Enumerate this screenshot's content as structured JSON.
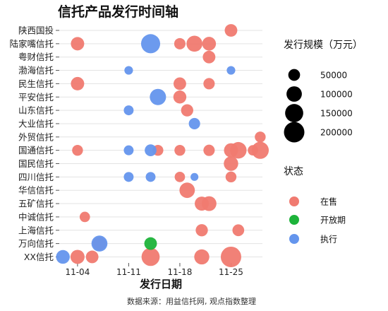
{
  "chart_data": {
    "type": "scatter",
    "title": "信托产品发行时间轴",
    "xlabel": "发行日期",
    "ylabel": "",
    "caption": "数据来源：用益信托网, 观点指数整理",
    "x_ticks": [
      "11-04",
      "11-11",
      "11-18",
      "11-25"
    ],
    "x_tick_values": [
      4,
      11,
      18,
      25
    ],
    "xlim": [
      1.5,
      29.3
    ],
    "categories": [
      "陕西国投",
      "陆家嘴信托",
      "粤财信托",
      "渤海信托",
      "民生信托",
      "平安信托",
      "山东信托",
      "大业信托",
      "外贸信托",
      "国通信托",
      "国民信托",
      "四川信托",
      "华信信托",
      "五矿信托",
      "中诚信托",
      "上海信托",
      "万向信托",
      "XX信托"
    ],
    "size_legend": {
      "title": "发行规模（万元）",
      "values": [
        50000,
        100000,
        150000,
        200000
      ],
      "labels": [
        "50000",
        "100000",
        "150000",
        "200000"
      ]
    },
    "status_legend": {
      "title": "状态",
      "items": [
        {
          "name": "在售",
          "color": "#F07A70"
        },
        {
          "name": "开放期",
          "color": "#1DB33A"
        },
        {
          "name": "执行",
          "color": "#6495ED"
        }
      ]
    },
    "series": [
      {
        "name": "在售",
        "color": "#F07A70",
        "points": [
          {
            "company": "陕西国投",
            "x": 25,
            "size": 60000
          },
          {
            "company": "陆家嘴信托",
            "x": 4,
            "size": 70000
          },
          {
            "company": "陆家嘴信托",
            "x": 18,
            "size": 45000
          },
          {
            "company": "陆家嘴信托",
            "x": 20,
            "size": 110000
          },
          {
            "company": "陆家嘴信托",
            "x": 22,
            "size": 75000
          },
          {
            "company": "粤财信托",
            "x": 22,
            "size": 60000
          },
          {
            "company": "民生信托",
            "x": 4,
            "size": 70000
          },
          {
            "company": "民生信托",
            "x": 18,
            "size": 60000
          },
          {
            "company": "民生信托",
            "x": 22,
            "size": 45000
          },
          {
            "company": "平安信托",
            "x": 18,
            "size": 65000
          },
          {
            "company": "山东信托",
            "x": 19,
            "size": 55000
          },
          {
            "company": "外贸信托",
            "x": 29,
            "size": 40000
          },
          {
            "company": "国通信托",
            "x": 4,
            "size": 40000
          },
          {
            "company": "国通信托",
            "x": 15,
            "size": 40000
          },
          {
            "company": "国通信托",
            "x": 18,
            "size": 40000
          },
          {
            "company": "国通信托",
            "x": 22,
            "size": 45000
          },
          {
            "company": "国通信托",
            "x": 25,
            "size": 80000
          },
          {
            "company": "国通信托",
            "x": 26,
            "size": 120000
          },
          {
            "company": "国通信托",
            "x": 28,
            "size": 35000
          },
          {
            "company": "国通信托",
            "x": 29,
            "size": 130000
          },
          {
            "company": "国民信托",
            "x": 25,
            "size": 85000
          },
          {
            "company": "四川信托",
            "x": 18,
            "size": 35000
          },
          {
            "company": "四川信托",
            "x": 25,
            "size": 40000
          },
          {
            "company": "华信信托",
            "x": 19,
            "size": 100000
          },
          {
            "company": "五矿信托",
            "x": 21,
            "size": 80000
          },
          {
            "company": "五矿信托",
            "x": 22,
            "size": 90000
          },
          {
            "company": "中诚信托",
            "x": 5,
            "size": 35000
          },
          {
            "company": "上海信托",
            "x": 21,
            "size": 55000
          },
          {
            "company": "上海信托",
            "x": 26,
            "size": 50000
          },
          {
            "company": "万向信托",
            "x": 7,
            "size": 70000
          },
          {
            "company": "XX信托",
            "x": 4,
            "size": 80000
          },
          {
            "company": "XX信托",
            "x": 6,
            "size": 60000
          },
          {
            "company": "XX信托",
            "x": 14,
            "size": 150000
          },
          {
            "company": "XX信托",
            "x": 21,
            "size": 95000
          },
          {
            "company": "XX信托",
            "x": 25,
            "size": 200000
          }
        ]
      },
      {
        "name": "开放期",
        "color": "#1DB33A",
        "points": [
          {
            "company": "万向信托",
            "x": 14,
            "size": 60000
          }
        ]
      },
      {
        "name": "执行",
        "color": "#6495ED",
        "points": [
          {
            "company": "陆家嘴信托",
            "x": 14,
            "size": 170000
          },
          {
            "company": "渤海信托",
            "x": 11,
            "size": 20000
          },
          {
            "company": "渤海信托",
            "x": 25,
            "size": 20000
          },
          {
            "company": "平安信托",
            "x": 15,
            "size": 115000
          },
          {
            "company": "山东信托",
            "x": 11,
            "size": 30000
          },
          {
            "company": "大业信托",
            "x": 20,
            "size": 45000
          },
          {
            "company": "国通信托",
            "x": 11,
            "size": 30000
          },
          {
            "company": "国通信托",
            "x": 14,
            "size": 50000
          },
          {
            "company": "四川信托",
            "x": 11,
            "size": 30000
          },
          {
            "company": "四川信托",
            "x": 14,
            "size": 30000
          },
          {
            "company": "四川信托",
            "x": 20,
            "size": 15000
          },
          {
            "company": "万向信托",
            "x": 7,
            "size": 110000
          },
          {
            "company": "XX信托",
            "x": 2,
            "size": 75000
          }
        ]
      }
    ]
  }
}
